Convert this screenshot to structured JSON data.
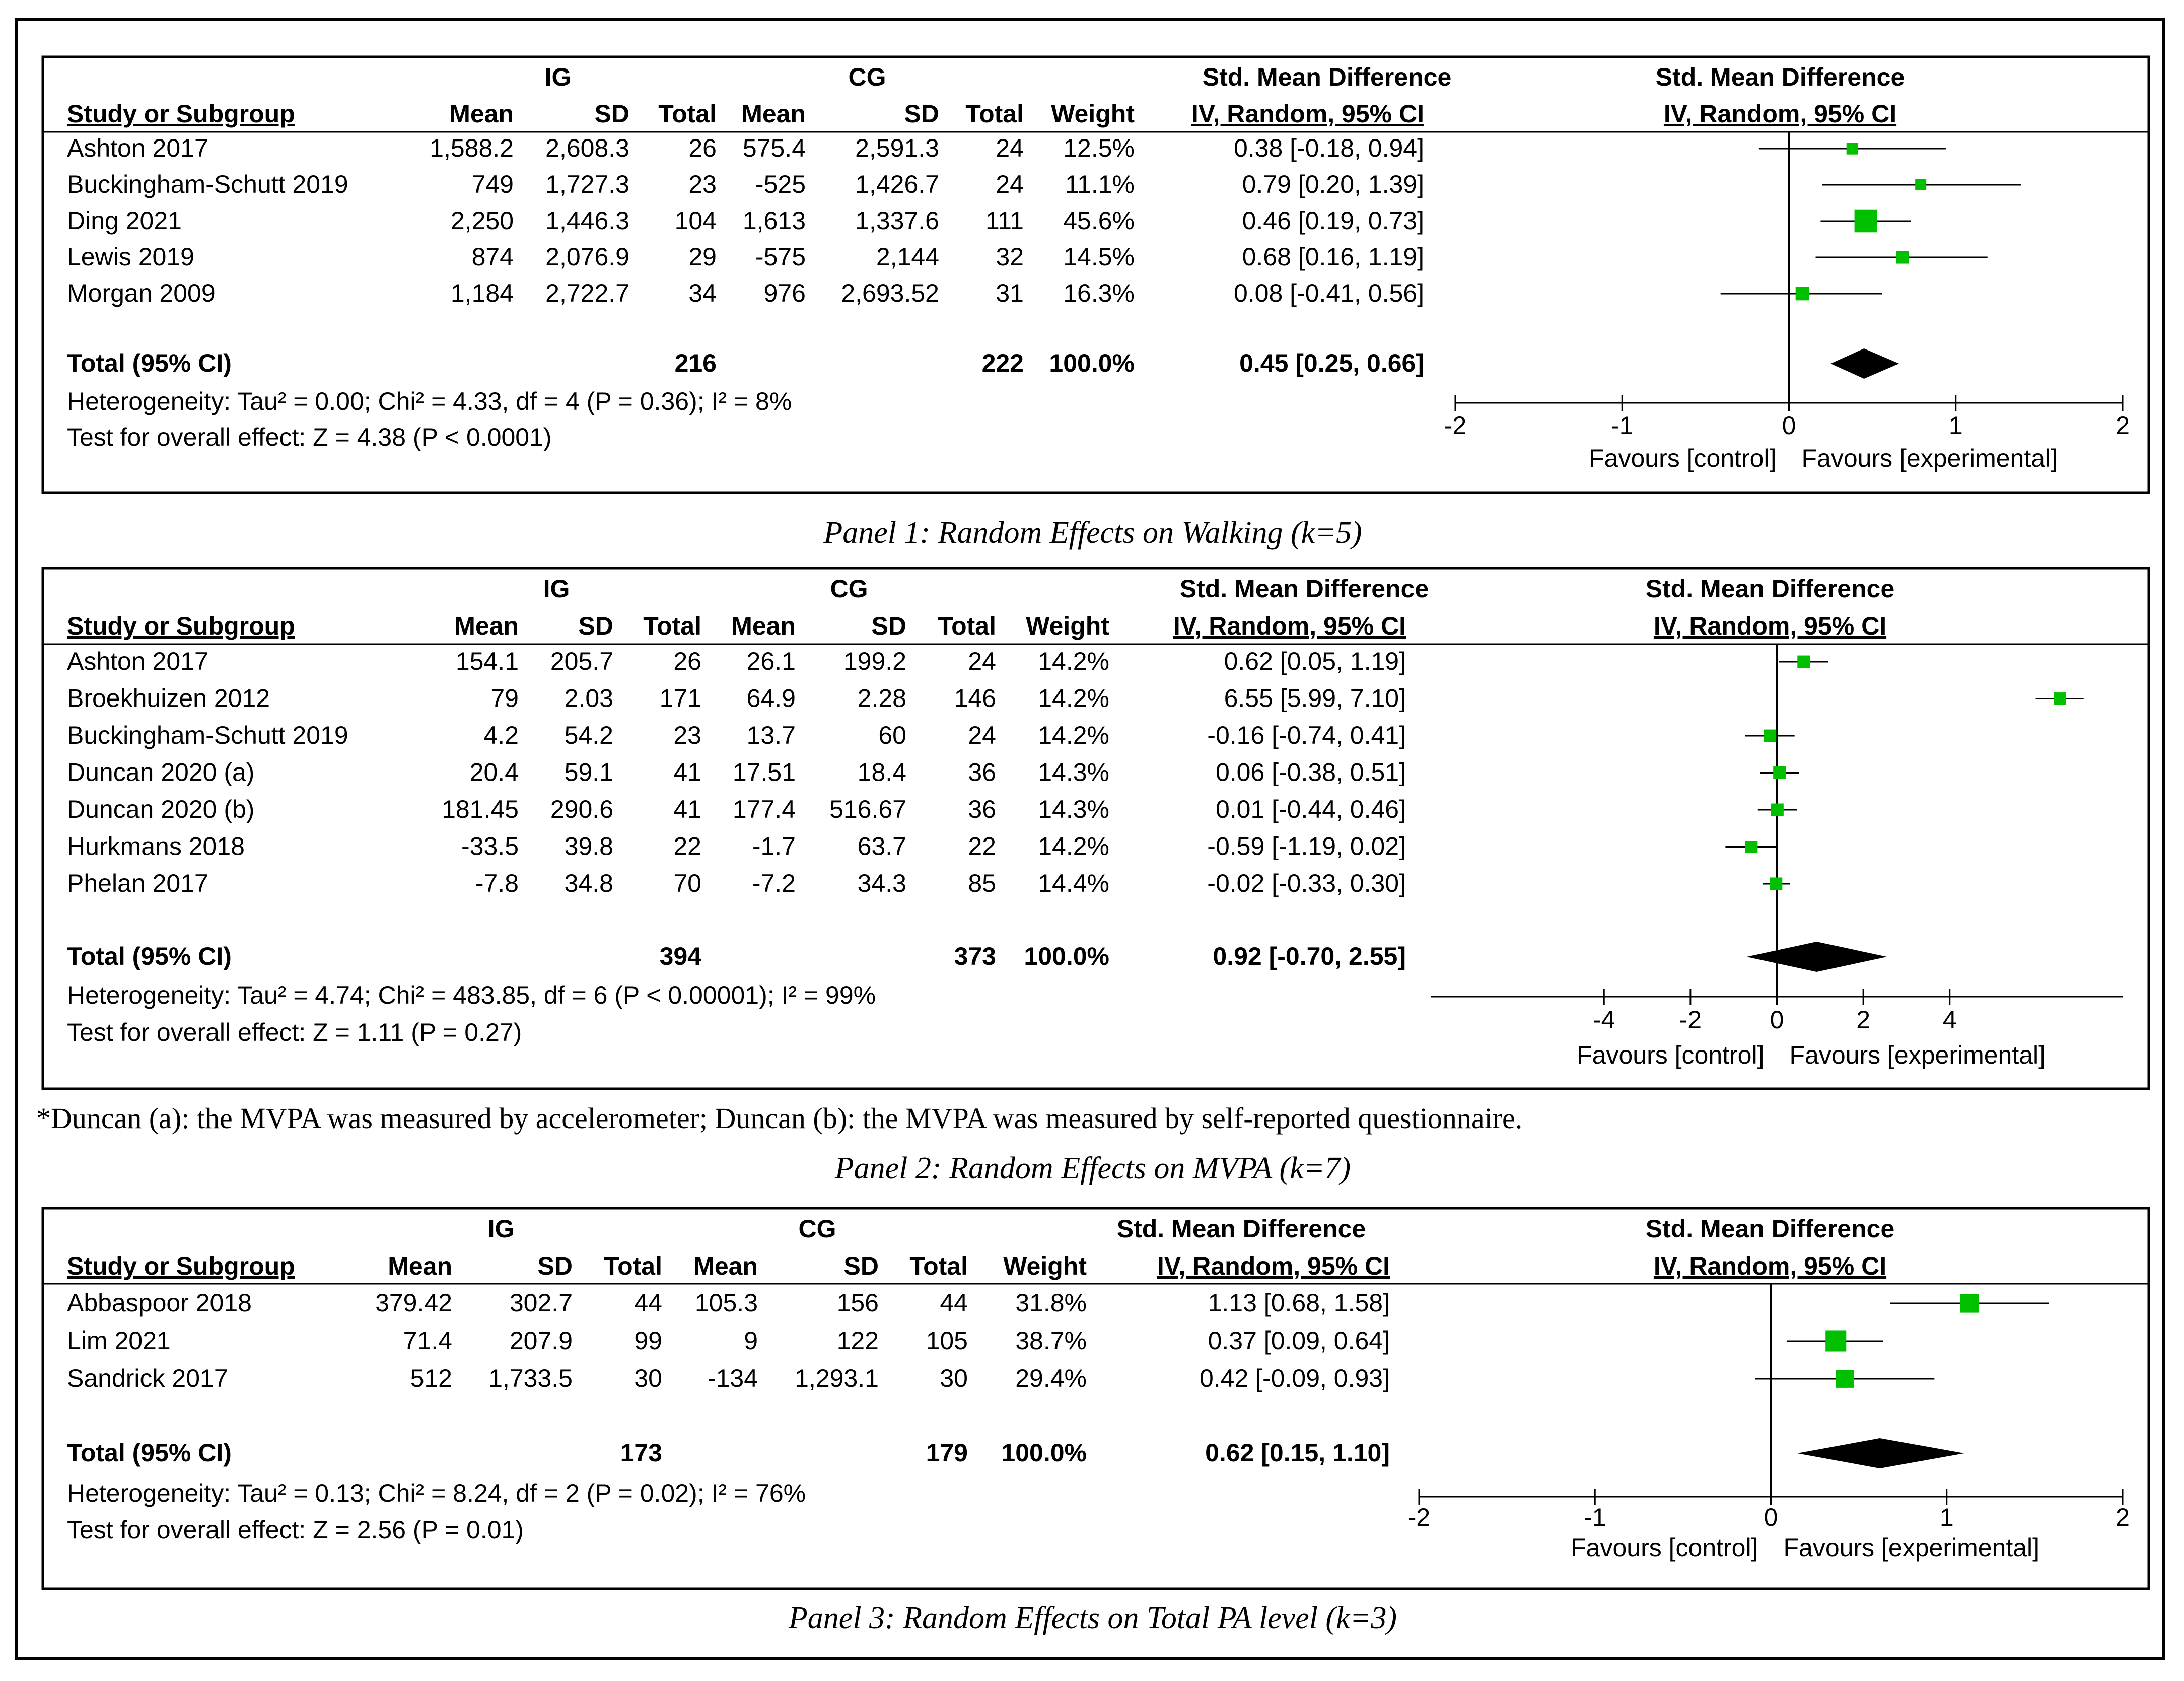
{
  "figure": {
    "footnote": "*Duncan (a): the MVPA was measured by accelerometer; Duncan (b): the MVPA was measured by self-reported questionnaire."
  },
  "colors": {
    "marker": "#00C000",
    "diamond": "#000000",
    "border": "#000000"
  },
  "chart_data": [
    {
      "type": "forest",
      "caption": "Panel 1: Random Effects on Walking (k=5)",
      "headers": {
        "study": "Study or Subgroup",
        "ig": "IG",
        "cg": "CG",
        "mean": "Mean",
        "sd": "SD",
        "total": "Total",
        "weight": "Weight",
        "smd": "Std. Mean Difference",
        "method": "IV, Random, 95% CI"
      },
      "studies": [
        {
          "name": "Ashton 2017",
          "ig_mean": "1,588.2",
          "ig_sd": "2,608.3",
          "ig_total": "26",
          "cg_mean": "575.4",
          "cg_sd": "2,591.3",
          "cg_total": "24",
          "weight": "12.5%",
          "ci_text": "0.38 [-0.18, 0.94]",
          "est": 0.38,
          "lo": -0.18,
          "hi": 0.94,
          "w": 12.5
        },
        {
          "name": "Buckingham-Schutt 2019",
          "ig_mean": "749",
          "ig_sd": "1,727.3",
          "ig_total": "23",
          "cg_mean": "-525",
          "cg_sd": "1,426.7",
          "cg_total": "24",
          "weight": "11.1%",
          "ci_text": "0.79 [0.20, 1.39]",
          "est": 0.79,
          "lo": 0.2,
          "hi": 1.39,
          "w": 11.1
        },
        {
          "name": "Ding 2021",
          "ig_mean": "2,250",
          "ig_sd": "1,446.3",
          "ig_total": "104",
          "cg_mean": "1,613",
          "cg_sd": "1,337.6",
          "cg_total": "111",
          "weight": "45.6%",
          "ci_text": "0.46 [0.19, 0.73]",
          "est": 0.46,
          "lo": 0.19,
          "hi": 0.73,
          "w": 45.6
        },
        {
          "name": "Lewis 2019",
          "ig_mean": "874",
          "ig_sd": "2,076.9",
          "ig_total": "29",
          "cg_mean": "-575",
          "cg_sd": "2,144",
          "cg_total": "32",
          "weight": "14.5%",
          "ci_text": "0.68 [0.16, 1.19]",
          "est": 0.68,
          "lo": 0.16,
          "hi": 1.19,
          "w": 14.5
        },
        {
          "name": "Morgan 2009",
          "ig_mean": "1,184",
          "ig_sd": "2,722.7",
          "ig_total": "34",
          "cg_mean": "976",
          "cg_sd": "2,693.52",
          "cg_total": "31",
          "weight": "16.3%",
          "ci_text": "0.08 [-0.41, 0.56]",
          "est": 0.08,
          "lo": -0.41,
          "hi": 0.56,
          "w": 16.3
        }
      ],
      "total": {
        "label": "Total (95% CI)",
        "ig_total": "216",
        "cg_total": "222",
        "weight": "100.0%",
        "ci_text": "0.45 [0.25, 0.66]",
        "est": 0.45,
        "lo": 0.25,
        "hi": 0.66
      },
      "heterogeneity": "Heterogeneity: Tau² = 0.00; Chi² = 4.33, df = 4 (P = 0.36); I² = 8%",
      "overall": "Test for overall effect: Z = 4.38 (P < 0.0001)",
      "axis": {
        "min": -2,
        "max": 2,
        "ticks": [
          -2,
          -1,
          0,
          1,
          2
        ],
        "tick_labels": [
          "-2",
          "-1",
          "0",
          "1",
          "2"
        ]
      },
      "favours_left": "Favours [control]",
      "favours_right": "Favours [experimental]"
    },
    {
      "type": "forest",
      "caption": "Panel 2: Random Effects on MVPA (k=7)",
      "headers": {
        "study": "Study or Subgroup",
        "ig": "IG",
        "cg": "CG",
        "mean": "Mean",
        "sd": "SD",
        "total": "Total",
        "weight": "Weight",
        "smd": "Std. Mean Difference",
        "method": "IV, Random, 95% CI"
      },
      "studies": [
        {
          "name": "Ashton 2017",
          "ig_mean": "154.1",
          "ig_sd": "205.7",
          "ig_total": "26",
          "cg_mean": "26.1",
          "cg_sd": "199.2",
          "cg_total": "24",
          "weight": "14.2%",
          "ci_text": "0.62 [0.05, 1.19]",
          "est": 0.62,
          "lo": 0.05,
          "hi": 1.19,
          "w": 14.2
        },
        {
          "name": "Broekhuizen 2012",
          "ig_mean": "79",
          "ig_sd": "2.03",
          "ig_total": "171",
          "cg_mean": "64.9",
          "cg_sd": "2.28",
          "cg_total": "146",
          "weight": "14.2%",
          "ci_text": "6.55 [5.99, 7.10]",
          "est": 6.55,
          "lo": 5.99,
          "hi": 7.1,
          "w": 14.2
        },
        {
          "name": "Buckingham-Schutt 2019",
          "ig_mean": "4.2",
          "ig_sd": "54.2",
          "ig_total": "23",
          "cg_mean": "13.7",
          "cg_sd": "60",
          "cg_total": "24",
          "weight": "14.2%",
          "ci_text": "-0.16 [-0.74, 0.41]",
          "est": -0.16,
          "lo": -0.74,
          "hi": 0.41,
          "w": 14.2
        },
        {
          "name": "Duncan 2020 (a)",
          "ig_mean": "20.4",
          "ig_sd": "59.1",
          "ig_total": "41",
          "cg_mean": "17.51",
          "cg_sd": "18.4",
          "cg_total": "36",
          "weight": "14.3%",
          "ci_text": "0.06 [-0.38, 0.51]",
          "est": 0.06,
          "lo": -0.38,
          "hi": 0.51,
          "w": 14.3
        },
        {
          "name": "Duncan 2020 (b)",
          "ig_mean": "181.45",
          "ig_sd": "290.6",
          "ig_total": "41",
          "cg_mean": "177.4",
          "cg_sd": "516.67",
          "cg_total": "36",
          "weight": "14.3%",
          "ci_text": "0.01 [-0.44, 0.46]",
          "est": 0.01,
          "lo": -0.44,
          "hi": 0.46,
          "w": 14.3
        },
        {
          "name": "Hurkmans 2018",
          "ig_mean": "-33.5",
          "ig_sd": "39.8",
          "ig_total": "22",
          "cg_mean": "-1.7",
          "cg_sd": "63.7",
          "cg_total": "22",
          "weight": "14.2%",
          "ci_text": "-0.59 [-1.19, 0.02]",
          "est": -0.59,
          "lo": -1.19,
          "hi": 0.02,
          "w": 14.2
        },
        {
          "name": "Phelan 2017",
          "ig_mean": "-7.8",
          "ig_sd": "34.8",
          "ig_total": "70",
          "cg_mean": "-7.2",
          "cg_sd": "34.3",
          "cg_total": "85",
          "weight": "14.4%",
          "ci_text": "-0.02 [-0.33, 0.30]",
          "est": -0.02,
          "lo": -0.33,
          "hi": 0.3,
          "w": 14.4
        }
      ],
      "total": {
        "label": "Total (95% CI)",
        "ig_total": "394",
        "cg_total": "373",
        "weight": "100.0%",
        "ci_text": "0.92 [-0.70, 2.55]",
        "est": 0.92,
        "lo": -0.7,
        "hi": 2.55
      },
      "heterogeneity": "Heterogeneity: Tau² = 4.74; Chi² = 483.85, df = 6 (P < 0.00001); I² = 99%",
      "overall": "Test for overall effect: Z = 1.11 (P = 0.27)",
      "axis": {
        "min": -8,
        "max": 8,
        "ticks": [
          -4,
          -2,
          0,
          2,
          4
        ],
        "tick_labels": [
          "-4",
          "-2",
          "0",
          "2",
          "4"
        ]
      },
      "favours_left": "Favours [control]",
      "favours_right": "Favours [experimental]"
    },
    {
      "type": "forest",
      "caption": "Panel 3: Random Effects on Total PA level (k=3)",
      "headers": {
        "study": "Study or Subgroup",
        "ig": "IG",
        "cg": "CG",
        "mean": "Mean",
        "sd": "SD",
        "total": "Total",
        "weight": "Weight",
        "smd": "Std. Mean Difference",
        "method": "IV, Random, 95% CI"
      },
      "studies": [
        {
          "name": "Abbaspoor 2018",
          "ig_mean": "379.42",
          "ig_sd": "302.7",
          "ig_total": "44",
          "cg_mean": "105.3",
          "cg_sd": "156",
          "cg_total": "44",
          "weight": "31.8%",
          "ci_text": "1.13 [0.68, 1.58]",
          "est": 1.13,
          "lo": 0.68,
          "hi": 1.58,
          "w": 31.8
        },
        {
          "name": "Lim 2021",
          "ig_mean": "71.4",
          "ig_sd": "207.9",
          "ig_total": "99",
          "cg_mean": "9",
          "cg_sd": "122",
          "cg_total": "105",
          "weight": "38.7%",
          "ci_text": "0.37 [0.09, 0.64]",
          "est": 0.37,
          "lo": 0.09,
          "hi": 0.64,
          "w": 38.7
        },
        {
          "name": "Sandrick 2017",
          "ig_mean": "512",
          "ig_sd": "1,733.5",
          "ig_total": "30",
          "cg_mean": "-134",
          "cg_sd": "1,293.1",
          "cg_total": "30",
          "weight": "29.4%",
          "ci_text": "0.42 [-0.09, 0.93]",
          "est": 0.42,
          "lo": -0.09,
          "hi": 0.93,
          "w": 29.4
        }
      ],
      "total": {
        "label": "Total (95% CI)",
        "ig_total": "173",
        "cg_total": "179",
        "weight": "100.0%",
        "ci_text": "0.62 [0.15, 1.10]",
        "est": 0.62,
        "lo": 0.15,
        "hi": 1.1
      },
      "heterogeneity": "Heterogeneity: Tau² = 0.13; Chi² = 8.24, df = 2 (P = 0.02); I² = 76%",
      "overall": "Test for overall effect: Z = 2.56 (P = 0.01)",
      "axis": {
        "min": -2,
        "max": 2,
        "ticks": [
          -2,
          -1,
          0,
          1,
          2
        ],
        "tick_labels": [
          "-2",
          "-1",
          "0",
          "1",
          "2"
        ]
      },
      "favours_left": "Favours [control]",
      "favours_right": "Favours [experimental]"
    }
  ]
}
